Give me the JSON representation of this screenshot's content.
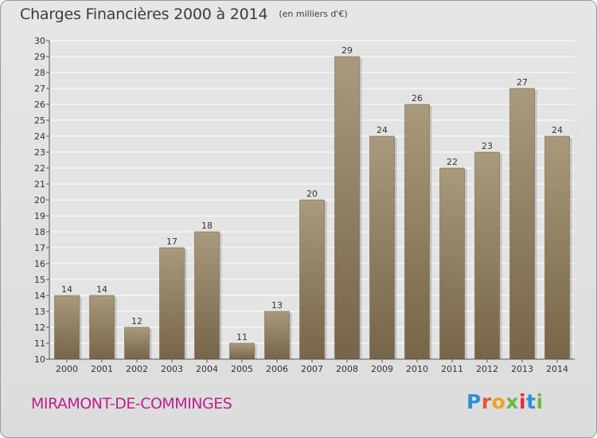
{
  "header": {
    "title": "Charges Financières 2000 à 2014",
    "subtitle": "(en milliers d'€)"
  },
  "footer": {
    "commune": "MIRAMONT-DE-COMMINGES",
    "logo": {
      "text": "Proxiti",
      "letter_colors": [
        "#2f8fd6",
        "#e8562a",
        "#f1a21c",
        "#6fb843",
        "#e32e3b",
        "#2f8fd6",
        "#6fb843"
      ]
    }
  },
  "colors": {
    "bar_top": "#a89a7c",
    "bar_bottom": "#766548",
    "grid": "#ffffff",
    "axis": "#555555",
    "plot_bg": "#e4e4e4"
  },
  "chart_data": {
    "type": "bar",
    "title": "Charges Financières 2000 à 2014",
    "subtitle": "(en milliers d'€)",
    "categories": [
      "2000",
      "2001",
      "2002",
      "2003",
      "2004",
      "2005",
      "2006",
      "2007",
      "2008",
      "2009",
      "2010",
      "2011",
      "2012",
      "2013",
      "2014"
    ],
    "values": [
      14,
      14,
      12,
      17,
      18,
      11,
      13,
      20,
      29,
      24,
      26,
      22,
      23,
      27,
      24
    ],
    "ylim": [
      10,
      30
    ],
    "yticks": [
      10,
      11,
      12,
      13,
      14,
      15,
      16,
      17,
      18,
      19,
      20,
      21,
      22,
      23,
      24,
      25,
      26,
      27,
      28,
      29,
      30
    ],
    "grid": true,
    "data_labels": true
  }
}
